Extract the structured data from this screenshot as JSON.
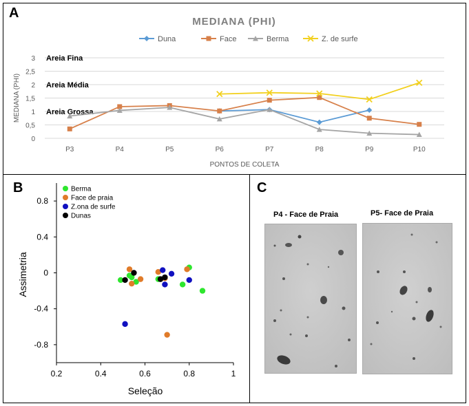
{
  "panels": {
    "a": "A",
    "b": "B",
    "c": "C"
  },
  "chart_data": [
    {
      "type": "line",
      "title": "MEDIANA (PHI)",
      "xlabel": "PONTOS DE COLETA",
      "ylabel": "MEDIANA (PHI)",
      "ylim": [
        0,
        3
      ],
      "yticks": [
        "0",
        "0,5",
        "1",
        "1,5",
        "2",
        "2,5",
        "3"
      ],
      "categories": [
        "P3",
        "P4",
        "P5",
        "P6",
        "P7",
        "P8",
        "P9",
        "P10"
      ],
      "legend_position": "top",
      "grid": "horizontal",
      "annotations": [
        "Areia Fina",
        "Areia Média",
        "Areia Grossa"
      ],
      "series": [
        {
          "name": "Duna",
          "color": "#5b9bd5",
          "marker": "diamond",
          "values": [
            null,
            null,
            null,
            1.02,
            1.07,
            0.6,
            1.05,
            null
          ]
        },
        {
          "name": "Face",
          "color": "#d7804a",
          "marker": "square",
          "values": [
            0.35,
            1.18,
            1.22,
            1.02,
            1.42,
            1.52,
            0.75,
            0.52
          ]
        },
        {
          "name": "Berma",
          "color": "#a5a5a5",
          "marker": "triangle",
          "values": [
            0.83,
            1.04,
            1.15,
            0.72,
            1.07,
            0.33,
            0.19,
            0.14
          ]
        },
        {
          "name": "Z. de surfe",
          "color": "#f2d01e",
          "marker": "x",
          "values": [
            null,
            null,
            null,
            1.65,
            1.7,
            1.67,
            1.45,
            2.07
          ]
        }
      ]
    },
    {
      "type": "scatter",
      "xlabel": "Seleção",
      "ylabel": "Assimetria",
      "xlim": [
        0.2,
        1.0
      ],
      "ylim": [
        -1.0,
        1.0
      ],
      "xticks": [
        "0.2",
        "0.4",
        "0.6",
        "0.8",
        "1"
      ],
      "yticks": [
        "0.8",
        "0.4",
        "0",
        "-0.4",
        "-0.8"
      ],
      "legend_position": "top-left",
      "series": [
        {
          "name": "Berma",
          "color": "#2ee62e",
          "points": [
            [
              0.49,
              -0.08
            ],
            [
              0.54,
              -0.05
            ],
            [
              0.56,
              -0.1
            ],
            [
              0.66,
              -0.07
            ],
            [
              0.77,
              -0.13
            ],
            [
              0.8,
              0.06
            ],
            [
              0.86,
              -0.2
            ],
            [
              0.53,
              -0.03
            ]
          ]
        },
        {
          "name": "Face de praia",
          "color": "#e07b29",
          "points": [
            [
              0.53,
              0.04
            ],
            [
              0.58,
              -0.07
            ],
            [
              0.54,
              -0.12
            ],
            [
              0.66,
              0.01
            ],
            [
              0.69,
              -0.06
            ],
            [
              0.7,
              -0.69
            ],
            [
              0.79,
              0.04
            ]
          ]
        },
        {
          "name": "Z.ona de surfe",
          "color": "#1010c0",
          "points": [
            [
              0.51,
              -0.57
            ],
            [
              0.68,
              0.03
            ],
            [
              0.69,
              -0.13
            ],
            [
              0.72,
              -0.01
            ],
            [
              0.8,
              -0.08
            ]
          ]
        },
        {
          "name": "Dunas",
          "color": "#000000",
          "points": [
            [
              0.51,
              -0.08
            ],
            [
              0.55,
              0.0
            ],
            [
              0.67,
              -0.07
            ],
            [
              0.69,
              -0.05
            ]
          ]
        }
      ]
    }
  ],
  "photos": [
    {
      "title": "P4 - Face de Praia"
    },
    {
      "title": "P5- Face de Praia"
    }
  ]
}
